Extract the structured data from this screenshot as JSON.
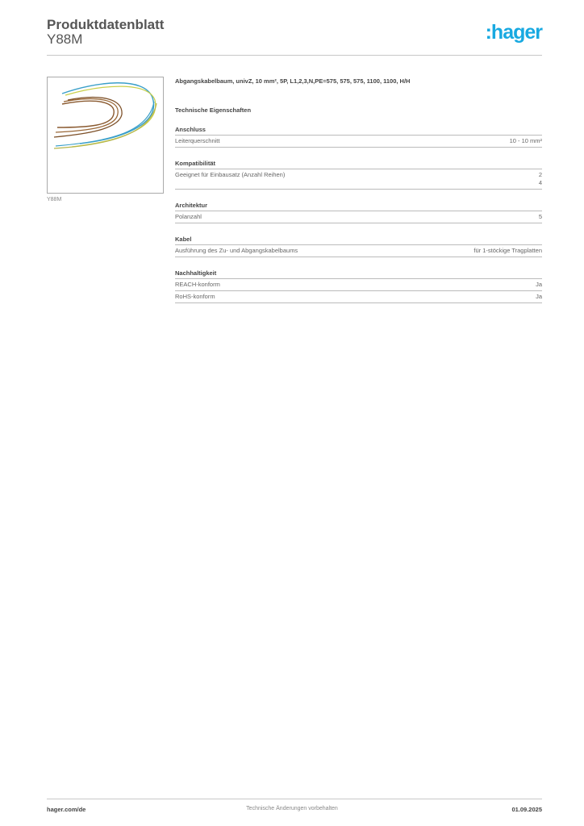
{
  "header": {
    "title": "Produktdatenblatt",
    "subtitle": "Y88M",
    "logo_text": ":hager",
    "logo_color": "#18a9e1"
  },
  "product": {
    "image_caption": "Y88M",
    "description": "Abgangskabelbaum, univZ, 10 mm², 5P, L1,2,3,N,PE=575, 575, 575, 1100, 1100, H/H"
  },
  "tech_heading": "Technische Eigenschaften",
  "sections": [
    {
      "heading": "Anschluss",
      "rows": [
        {
          "label": "Leiterquerschnitt",
          "values": [
            "10 - 10 mm²"
          ]
        }
      ]
    },
    {
      "heading": "Kompatibilität",
      "rows": [
        {
          "label": "Geeignet für Einbausatz (Anzahl Reihen)",
          "values": [
            "2",
            "4"
          ]
        }
      ]
    },
    {
      "heading": "Architektur",
      "rows": [
        {
          "label": "Polanzahl",
          "values": [
            "5"
          ]
        }
      ]
    },
    {
      "heading": "Kabel",
      "rows": [
        {
          "label": "Ausführung des Zu- und Abgangskabelbaums",
          "values": [
            "für 1-stöckige Tragplatten"
          ]
        }
      ]
    },
    {
      "heading": "Nachhaltigkeit",
      "rows": [
        {
          "label": "REACH-konform",
          "values": [
            "Ja"
          ]
        },
        {
          "label": "RoHS-konform",
          "values": [
            "Ja"
          ]
        }
      ]
    }
  ],
  "footer": {
    "website": "hager.com/de",
    "notice": "Technische Änderungen vorbehalten",
    "date": "01.09.2025"
  }
}
